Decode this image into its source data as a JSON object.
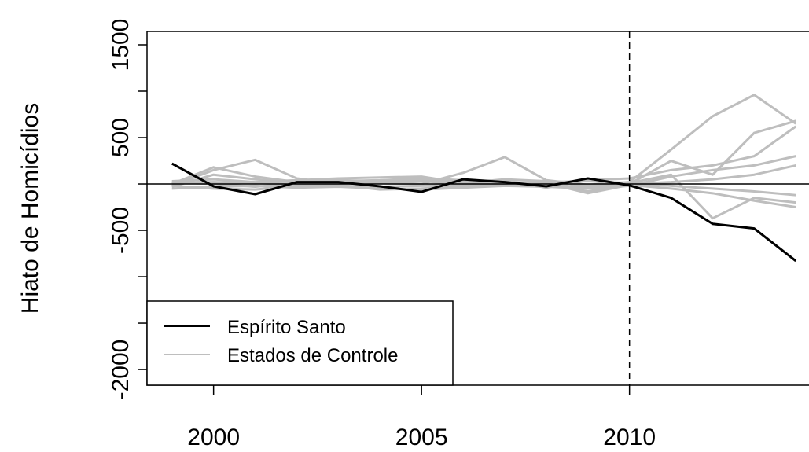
{
  "chart_data": {
    "type": "line",
    "ylabel": "Hiato de Homicídios",
    "x": [
      1999,
      2000,
      2001,
      2002,
      2003,
      2004,
      2005,
      2006,
      2007,
      2008,
      2009,
      2010,
      2011,
      2012,
      2013,
      2014
    ],
    "xlim": [
      1998.4,
      2014.6
    ],
    "xticks": [
      2000,
      2005,
      2010
    ],
    "ylim": [
      -2169,
      1644
    ],
    "yticks": [
      -2000,
      -500,
      500,
      1500
    ],
    "minor_yticks": [
      -1500,
      -1000,
      0,
      1000
    ],
    "hline": 0,
    "vline": 2010,
    "legend": "bottom-left",
    "series": [
      {
        "name": "Espírito Santo",
        "color": "#000000",
        "values": [
          220,
          -25,
          -110,
          20,
          20,
          -25,
          -85,
          50,
          20,
          -25,
          60,
          -15,
          -150,
          -430,
          -480,
          -830
        ]
      },
      {
        "name": "Estados de Controle",
        "color": "#bebebe",
        "values": [
          -20,
          150,
          260,
          60,
          0,
          10,
          0,
          120,
          290,
          40,
          -10,
          20,
          370,
          730,
          960,
          650
        ]
      },
      {
        "color": "#bebebe",
        "values": [
          0,
          180,
          80,
          20,
          30,
          40,
          60,
          40,
          20,
          0,
          -80,
          0,
          250,
          100,
          550,
          680
        ]
      },
      {
        "color": "#bebebe",
        "values": [
          -30,
          100,
          50,
          20,
          40,
          30,
          40,
          20,
          40,
          -40,
          40,
          60,
          150,
          200,
          300,
          620
        ]
      },
      {
        "color": "#bebebe",
        "values": [
          30,
          50,
          20,
          40,
          60,
          70,
          80,
          10,
          50,
          30,
          -20,
          10,
          100,
          -370,
          -150,
          -200
        ]
      },
      {
        "color": "#bebebe",
        "values": [
          -50,
          -30,
          -20,
          -40,
          -30,
          -50,
          -60,
          -40,
          -20,
          -30,
          -50,
          -20,
          80,
          150,
          200,
          300
        ]
      },
      {
        "color": "#bebebe",
        "values": [
          20,
          0,
          -30,
          10,
          -10,
          -60,
          -50,
          -20,
          -10,
          10,
          -100,
          -10,
          -50,
          -100,
          -180,
          -250
        ]
      },
      {
        "color": "#bebebe",
        "values": [
          -20,
          -50,
          -60,
          -20,
          -20,
          -30,
          -20,
          -10,
          -20,
          -20,
          -30,
          0,
          20,
          50,
          100,
          200
        ]
      },
      {
        "color": "#bebebe",
        "values": [
          10,
          20,
          10,
          0,
          20,
          10,
          30,
          0,
          10,
          20,
          30,
          10,
          -20,
          -50,
          -80,
          -120
        ]
      }
    ]
  }
}
